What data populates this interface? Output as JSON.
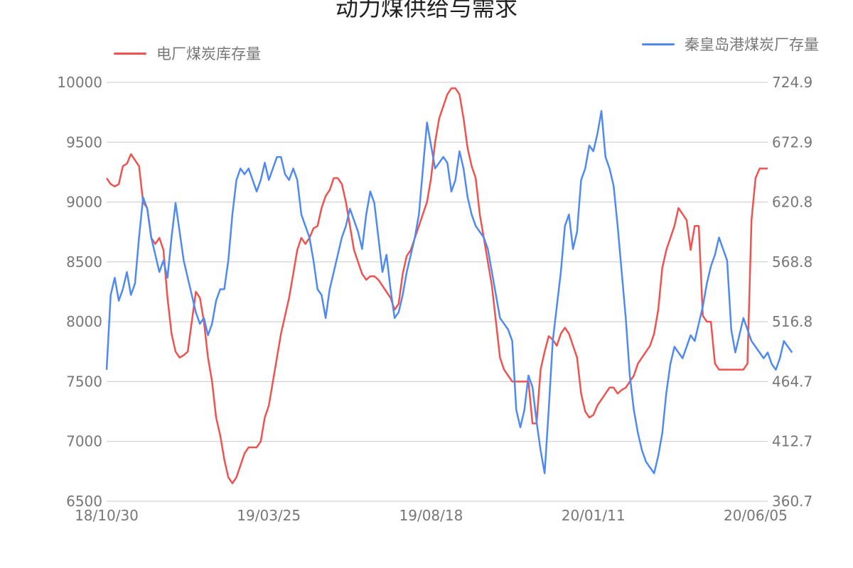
{
  "chart_data": {
    "type": "line",
    "title": "动力煤供给与需求",
    "legend_placement": "top",
    "grid": true,
    "x_ticks": [
      "18/10/30",
      "19/03/25",
      "19/08/18",
      "20/01/11",
      "20/06/05"
    ],
    "x_tick_index": [
      0,
      40,
      80,
      120,
      160
    ],
    "y_left": {
      "ticks": [
        "6500",
        "7000",
        "7500",
        "8000",
        "8500",
        "9000",
        "9500",
        "10000"
      ],
      "range": [
        6500,
        10000
      ]
    },
    "y_right": {
      "ticks": [
        "360.7",
        "412.7",
        "464.7",
        "516.8",
        "568.8",
        "620.8",
        "672.9",
        "724.9"
      ],
      "range": [
        360.7,
        724.9
      ]
    },
    "series": [
      {
        "name": "电厂煤炭库存量",
        "axis": "left",
        "color": "#f0524f",
        "values": [
          9200,
          9150,
          9130,
          9150,
          9300,
          9320,
          9400,
          9350,
          9300,
          9000,
          8950,
          8700,
          8650,
          8700,
          8600,
          8200,
          7900,
          7750,
          7700,
          7720,
          7750,
          8000,
          8250,
          8200,
          8000,
          7700,
          7500,
          7200,
          7050,
          6850,
          6700,
          6650,
          6700,
          6800,
          6900,
          6950,
          6950,
          6950,
          7000,
          7200,
          7300,
          7500,
          7700,
          7900,
          8050,
          8200,
          8400,
          8600,
          8700,
          8650,
          8700,
          8780,
          8800,
          8950,
          9050,
          9100,
          9200,
          9200,
          9150,
          9000,
          8800,
          8600,
          8500,
          8400,
          8350,
          8380,
          8380,
          8350,
          8300,
          8250,
          8200,
          8100,
          8150,
          8400,
          8550,
          8600,
          8700,
          8800,
          8900,
          9000,
          9200,
          9500,
          9700,
          9800,
          9900,
          9950,
          9950,
          9900,
          9700,
          9450,
          9300,
          9200,
          8900,
          8700,
          8500,
          8300,
          8000,
          7700,
          7600,
          7550,
          7500,
          7500,
          7500,
          7500,
          7500,
          7150,
          7150,
          7600,
          7750,
          7880,
          7850,
          7800,
          7900,
          7950,
          7900,
          7800,
          7700,
          7400,
          7250,
          7200,
          7220,
          7300,
          7350,
          7400,
          7450,
          7450,
          7400,
          7430,
          7450,
          7500,
          7550,
          7650,
          7700,
          7750,
          7800,
          7900,
          8100,
          8450,
          8600,
          8700,
          8800,
          8950,
          8900,
          8850,
          8600,
          8800,
          8800,
          8050,
          8000,
          8000,
          7650,
          7600,
          7600,
          7600,
          7600,
          7600,
          7600,
          7600,
          7650,
          8850,
          9200,
          9280,
          9280,
          9280
        ]
      },
      {
        "name": "秦皇岛港煤炭厂存量",
        "axis": "right",
        "color": "#4f8af2",
        "values": [
          475,
          540,
          555,
          535,
          545,
          560,
          540,
          550,
          590,
          625,
          615,
          590,
          575,
          560,
          570,
          555,
          590,
          620,
          595,
          570,
          555,
          540,
          525,
          515,
          520,
          505,
          515,
          535,
          545,
          545,
          570,
          610,
          640,
          650,
          645,
          650,
          640,
          630,
          640,
          655,
          640,
          650,
          660,
          660,
          645,
          640,
          650,
          640,
          610,
          600,
          590,
          570,
          545,
          540,
          520,
          545,
          560,
          575,
          590,
          600,
          615,
          605,
          595,
          580,
          610,
          630,
          620,
          590,
          560,
          575,
          545,
          520,
          525,
          540,
          560,
          575,
          590,
          610,
          650,
          690,
          670,
          650,
          655,
          660,
          655,
          630,
          640,
          665,
          650,
          625,
          610,
          600,
          595,
          590,
          580,
          560,
          540,
          520,
          515,
          510,
          500,
          440,
          425,
          440,
          470,
          460,
          430,
          405,
          385,
          440,
          500,
          530,
          560,
          600,
          610,
          580,
          595,
          640,
          650,
          670,
          665,
          680,
          700,
          660,
          650,
          635,
          600,
          560,
          520,
          470,
          440,
          420,
          405,
          395,
          390,
          385,
          400,
          420,
          455,
          480,
          495,
          490,
          485,
          495,
          505,
          500,
          515,
          530,
          550,
          565,
          575,
          590,
          580,
          570,
          510,
          490,
          505,
          520,
          510,
          500,
          495,
          490,
          485,
          490,
          480,
          475,
          485,
          500,
          495,
          490
        ]
      }
    ]
  }
}
